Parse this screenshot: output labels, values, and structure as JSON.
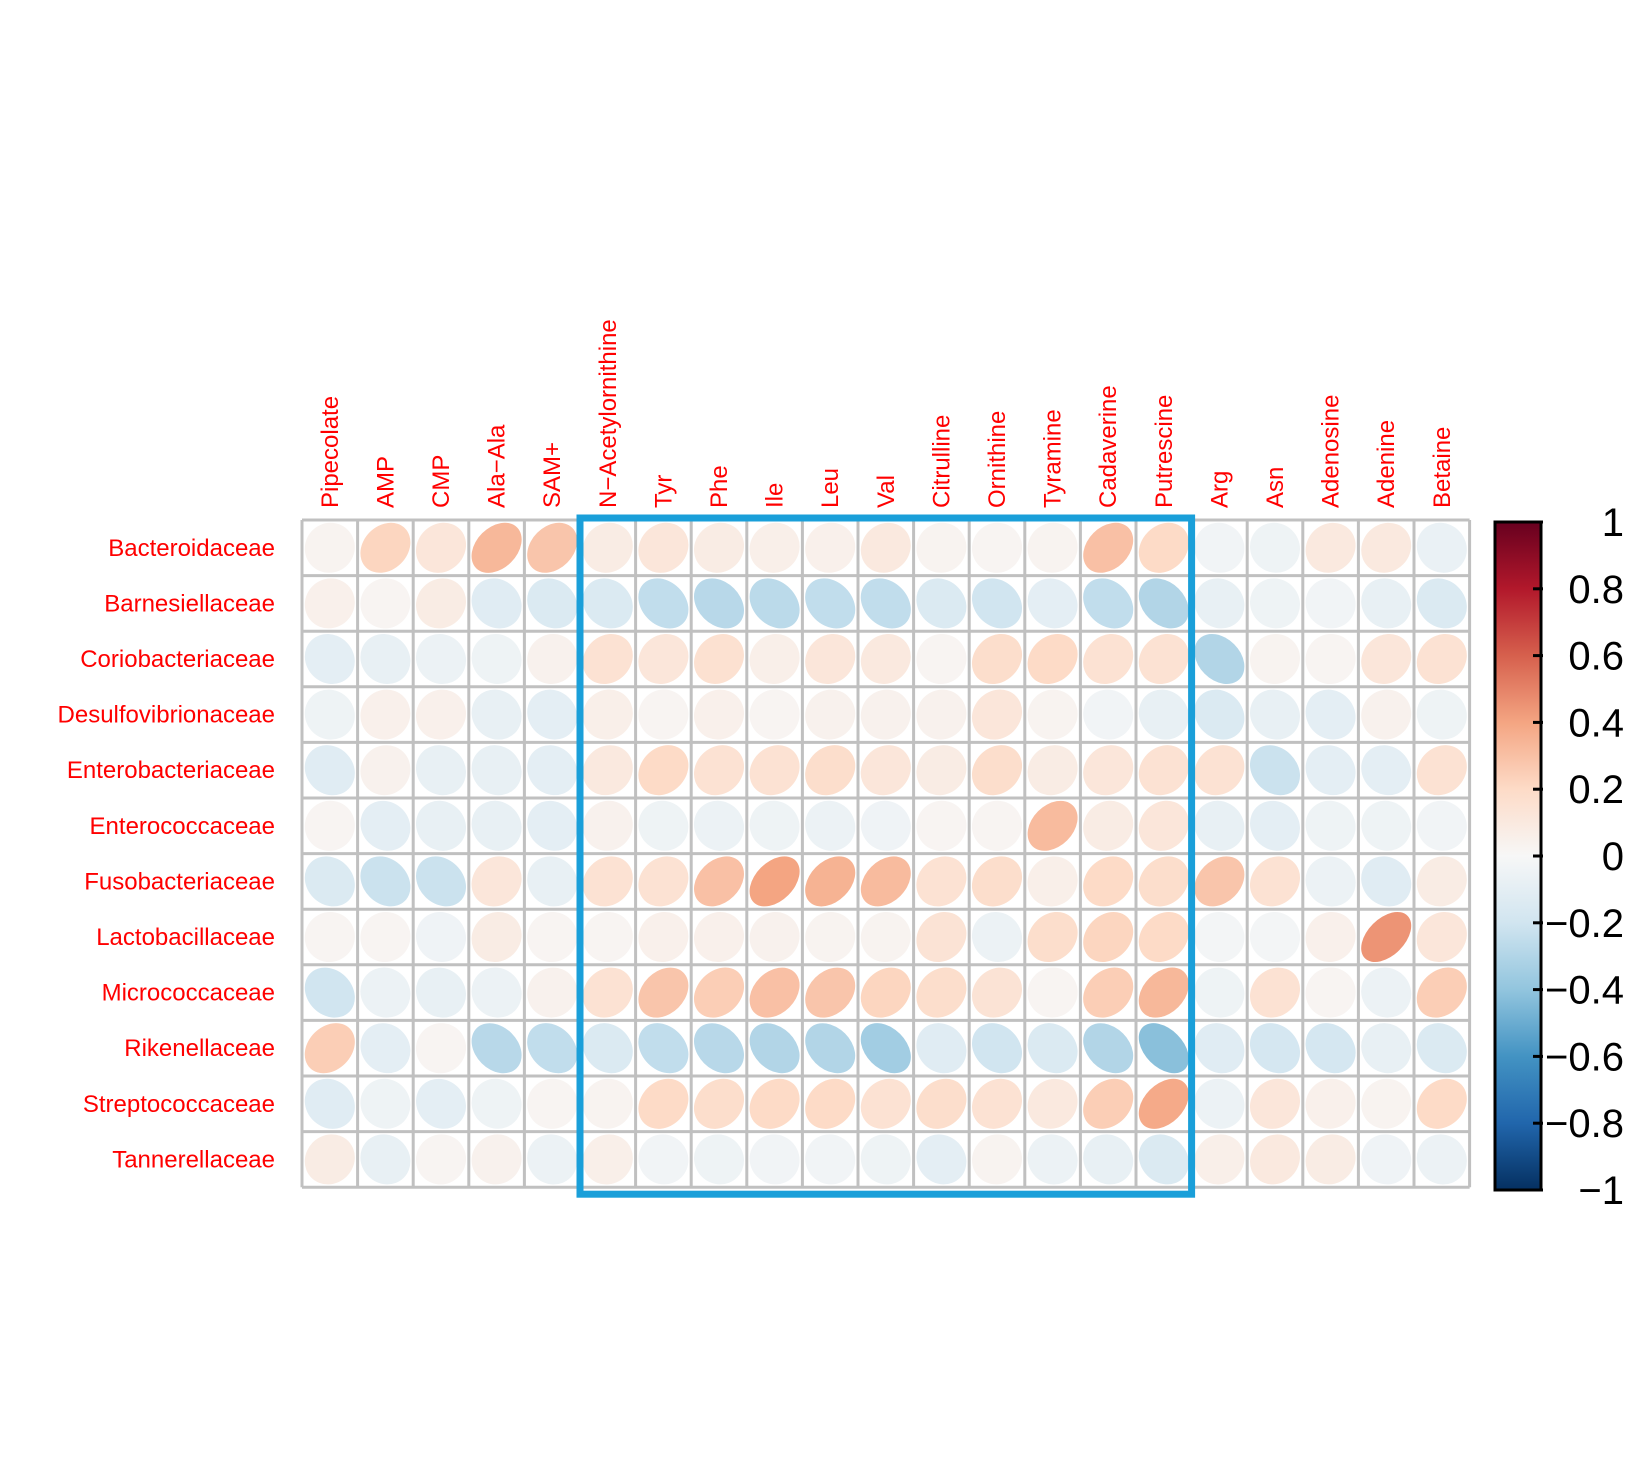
{
  "chart_data": {
    "type": "heatmap",
    "subtype": "correlation-ellipse",
    "title": "",
    "columns": [
      "Pipecolate",
      "AMP",
      "CMP",
      "Ala−Ala",
      "SAM+",
      "N−Acetylornithine",
      "Tyr",
      "Phe",
      "Ile",
      "Leu",
      "Val",
      "Citrulline",
      "Ornithine",
      "Tyramine",
      "Cadaverine",
      "Putrescine",
      "Arg",
      "Asn",
      "Adenosine",
      "Adenine",
      "Betaine"
    ],
    "rows": [
      "Bacteroidaceae",
      "Barnesiellaceae",
      "Coriobacteriaceae",
      "Desulfovibrionaceae",
      "Enterobacteriaceae",
      "Enterococcaceae",
      "Fusobacteriaceae",
      "Lactobacillaceae",
      "Micrococcaceae",
      "Rikenellaceae",
      "Streptococcaceae",
      "Tannerellaceae"
    ],
    "values": [
      [
        0.03,
        0.22,
        0.12,
        0.33,
        0.28,
        0.08,
        0.12,
        0.08,
        0.06,
        0.05,
        0.1,
        0.03,
        0.02,
        0.03,
        0.3,
        0.2,
        -0.03,
        -0.05,
        0.1,
        0.1,
        -0.07
      ],
      [
        0.05,
        0.02,
        0.08,
        -0.12,
        -0.15,
        -0.15,
        -0.25,
        -0.28,
        -0.27,
        -0.25,
        -0.25,
        -0.15,
        -0.2,
        -0.1,
        -0.25,
        -0.3,
        -0.08,
        -0.05,
        -0.03,
        -0.08,
        -0.15
      ],
      [
        -0.1,
        -0.08,
        -0.06,
        -0.05,
        0.04,
        0.15,
        0.12,
        0.16,
        0.06,
        0.12,
        0.1,
        0.02,
        0.18,
        0.2,
        0.15,
        0.15,
        -0.3,
        0.03,
        0.02,
        0.12,
        0.15
      ],
      [
        -0.05,
        0.05,
        0.05,
        -0.08,
        -0.1,
        0.06,
        0.02,
        0.05,
        0.02,
        0.04,
        0.04,
        0.04,
        0.12,
        0.03,
        -0.03,
        -0.08,
        -0.15,
        -0.08,
        -0.1,
        0.04,
        -0.05
      ],
      [
        -0.12,
        0.04,
        -0.08,
        -0.08,
        -0.1,
        0.1,
        0.2,
        0.15,
        0.15,
        0.18,
        0.12,
        0.08,
        0.18,
        0.08,
        0.12,
        0.15,
        0.15,
        -0.22,
        -0.1,
        -0.1,
        0.15
      ],
      [
        0.02,
        -0.1,
        -0.08,
        -0.08,
        -0.1,
        0.04,
        -0.05,
        -0.06,
        -0.05,
        -0.06,
        -0.04,
        0.02,
        0.02,
        0.32,
        0.08,
        0.12,
        -0.08,
        -0.1,
        -0.05,
        -0.05,
        -0.03
      ],
      [
        -0.15,
        -0.22,
        -0.22,
        0.12,
        -0.08,
        0.15,
        0.15,
        0.3,
        0.4,
        0.35,
        0.32,
        0.15,
        0.18,
        0.06,
        0.2,
        0.18,
        0.28,
        0.15,
        -0.06,
        -0.12,
        0.08
      ],
      [
        0.02,
        0.02,
        -0.04,
        0.08,
        0.02,
        0.02,
        0.05,
        0.05,
        0.04,
        0.03,
        0.03,
        0.14,
        -0.06,
        0.18,
        0.22,
        0.2,
        -0.02,
        -0.02,
        0.05,
        0.45,
        0.12
      ],
      [
        -0.2,
        -0.06,
        -0.08,
        -0.06,
        0.04,
        0.15,
        0.28,
        0.25,
        0.3,
        0.28,
        0.22,
        0.18,
        0.14,
        0.02,
        0.25,
        0.33,
        -0.05,
        0.15,
        0.02,
        -0.06,
        0.25
      ],
      [
        0.25,
        -0.1,
        0.02,
        -0.28,
        -0.25,
        -0.15,
        -0.25,
        -0.28,
        -0.3,
        -0.3,
        -0.35,
        -0.12,
        -0.2,
        -0.15,
        -0.3,
        -0.42,
        -0.12,
        -0.18,
        -0.18,
        -0.08,
        -0.15
      ],
      [
        -0.12,
        -0.05,
        -0.1,
        -0.05,
        0.02,
        0.03,
        0.2,
        0.18,
        0.2,
        0.2,
        0.15,
        0.18,
        0.15,
        0.1,
        0.25,
        0.38,
        -0.06,
        0.12,
        0.05,
        0.03,
        0.2
      ],
      [
        0.08,
        -0.08,
        0.02,
        0.04,
        -0.06,
        0.06,
        -0.03,
        -0.05,
        -0.03,
        -0.03,
        -0.05,
        -0.1,
        0.03,
        -0.06,
        -0.08,
        -0.15,
        0.06,
        0.1,
        0.08,
        -0.04,
        -0.06
      ]
    ],
    "colorbar": {
      "range": [
        -1,
        1
      ],
      "ticks": [
        "1",
        "0.8",
        "0.6",
        "0.4",
        "0.2",
        "0",
        "−0.2",
        "−0.4",
        "−0.6",
        "−0.8",
        "−1"
      ],
      "colors": [
        "#67001f",
        "#b2182b",
        "#d6604d",
        "#f4a582",
        "#fddbc7",
        "#f7f7f7",
        "#d1e5f0",
        "#92c5de",
        "#4393c3",
        "#2166ac",
        "#053061"
      ]
    },
    "highlight_box": {
      "from_column": "N−Acetylornithine",
      "to_column": "Putrescine",
      "color": "#1a9fd9"
    },
    "label_color": "#ff0000",
    "grid_color": "#c0c0c0"
  }
}
